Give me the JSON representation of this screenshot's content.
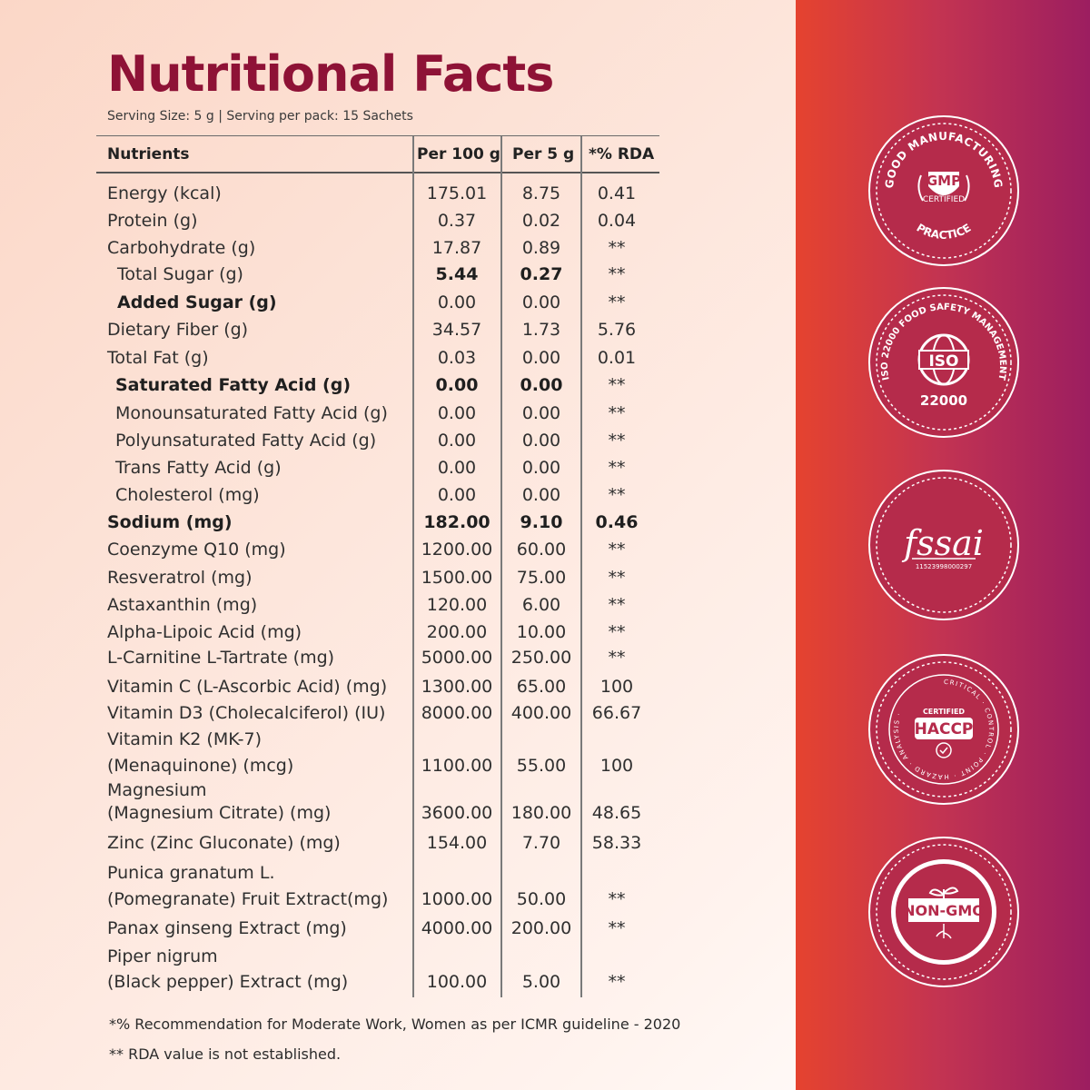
{
  "title": "Nutritional Facts",
  "serving": "Serving Size: 5 g | Serving per pack: 15 Sachets",
  "headers": {
    "nutrient": "Nutrients",
    "per100": "Per 100 g",
    "per5": "Per 5 g",
    "rda": "*% RDA"
  },
  "rows": [
    {
      "name": "Energy (kcal)",
      "p100": "175.01",
      "p5": "8.75",
      "rda": "0.41"
    },
    {
      "name": "Protein (g)",
      "p100": "0.37",
      "p5": "0.02",
      "rda": "0.04"
    },
    {
      "name": "Carbohydrate (g)",
      "p100": "17.87",
      "p5": "0.89",
      "rda": "**"
    },
    {
      "name": "Total Sugar (g)",
      "p100": "5.44",
      "p5": "0.27",
      "rda": "**"
    },
    {
      "name": "Added Sugar (g)",
      "p100": "0.00",
      "p5": "0.00",
      "rda": "**"
    },
    {
      "name": "Dietary Fiber (g)",
      "p100": "34.57",
      "p5": "1.73",
      "rda": "5.76"
    },
    {
      "name": "Total Fat (g)",
      "p100": "0.03",
      "p5": "0.00",
      "rda": "0.01"
    },
    {
      "name": "Saturated Fatty Acid (g)",
      "p100": "0.00",
      "p5": "0.00",
      "rda": "**"
    },
    {
      "name": "Monounsaturated Fatty Acid (g)",
      "p100": "0.00",
      "p5": "0.00",
      "rda": "**"
    },
    {
      "name": "Polyunsaturated Fatty Acid (g)",
      "p100": "0.00",
      "p5": "0.00",
      "rda": "**"
    },
    {
      "name": "Trans Fatty Acid (g)",
      "p100": "0.00",
      "p5": "0.00",
      "rda": "**"
    },
    {
      "name": "Cholesterol (mg)",
      "p100": "0.00",
      "p5": "0.00",
      "rda": "**"
    },
    {
      "name": "Sodium (mg)",
      "p100": "182.00",
      "p5": "9.10",
      "rda": "0.46"
    },
    {
      "name": "Coenzyme Q10 (mg)",
      "p100": "1200.00",
      "p5": "60.00",
      "rda": "**"
    },
    {
      "name": "Resveratrol (mg)",
      "p100": "1500.00",
      "p5": "75.00",
      "rda": "**"
    },
    {
      "name": "Astaxanthin (mg)",
      "p100": "120.00",
      "p5": "6.00",
      "rda": "**"
    },
    {
      "name": "Alpha-Lipoic Acid (mg)",
      "p100": "200.00",
      "p5": "10.00",
      "rda": "**"
    },
    {
      "name": "L-Carnitine L-Tartrate (mg)",
      "p100": "5000.00",
      "p5": "250.00",
      "rda": "**"
    },
    {
      "name": "Vitamin C (L-Ascorbic Acid) (mg)",
      "p100": "1300.00",
      "p5": "65.00",
      "rda": "100"
    },
    {
      "name": "Vitamin D3 (Cholecalciferol) (IU)",
      "p100": "8000.00",
      "p5": "400.00",
      "rda": "66.67"
    },
    {
      "name": "Vitamin K2 (MK-7)",
      "name2": "(Menaquinone) (mcg)",
      "p100": "1100.00",
      "p5": "55.00",
      "rda": "100"
    },
    {
      "name": "Magnesium",
      "name2": "(Magnesium Citrate) (mg)",
      "p100": "3600.00",
      "p5": "180.00",
      "rda": "48.65"
    },
    {
      "name": "Zinc (Zinc Gluconate) (mg)",
      "p100": "154.00",
      "p5": "7.70",
      "rda": "58.33"
    },
    {
      "name": "Punica granatum L.",
      "name2": "(Pomegranate) Fruit Extract(mg)",
      "p100": "1000.00",
      "p5": "50.00",
      "rda": "**"
    },
    {
      "name": "Panax ginseng Extract (mg)",
      "p100": "4000.00",
      "p5": "200.00",
      "rda": "**"
    },
    {
      "name": "Piper nigrum",
      "name2": "(Black pepper) Extract (mg)",
      "p100": "100.00",
      "p5": "5.00",
      "rda": "**"
    }
  ],
  "footnotes": [
    "*% Recommendation for Moderate Work, Women as per ICMR guideline - 2020",
    "** RDA value is not established."
  ],
  "badges": {
    "gmp": {
      "top": "GOOD MANUFACTURING",
      "main": "GMP",
      "sub": "CERTIFIED",
      "bottom": "PRACTICE"
    },
    "iso": {
      "ring": "ISO 22000 FOOD SAFETY MANAGEMENT",
      "main": "ISO",
      "number": "22000"
    },
    "fssai": {
      "main": "fssai",
      "license": "11523998000297"
    },
    "haccp": {
      "ring": "CRITICAL · CONTROL · POINT · HAZARD · ANALYSIS ·",
      "sub": "CERTIFIED",
      "main": "HACCP"
    },
    "nongmo": {
      "main": "NON-GMO"
    }
  },
  "colors": {
    "title": "#8e1236",
    "panel_start": "#e5432f",
    "panel_end": "#9c1e60"
  }
}
